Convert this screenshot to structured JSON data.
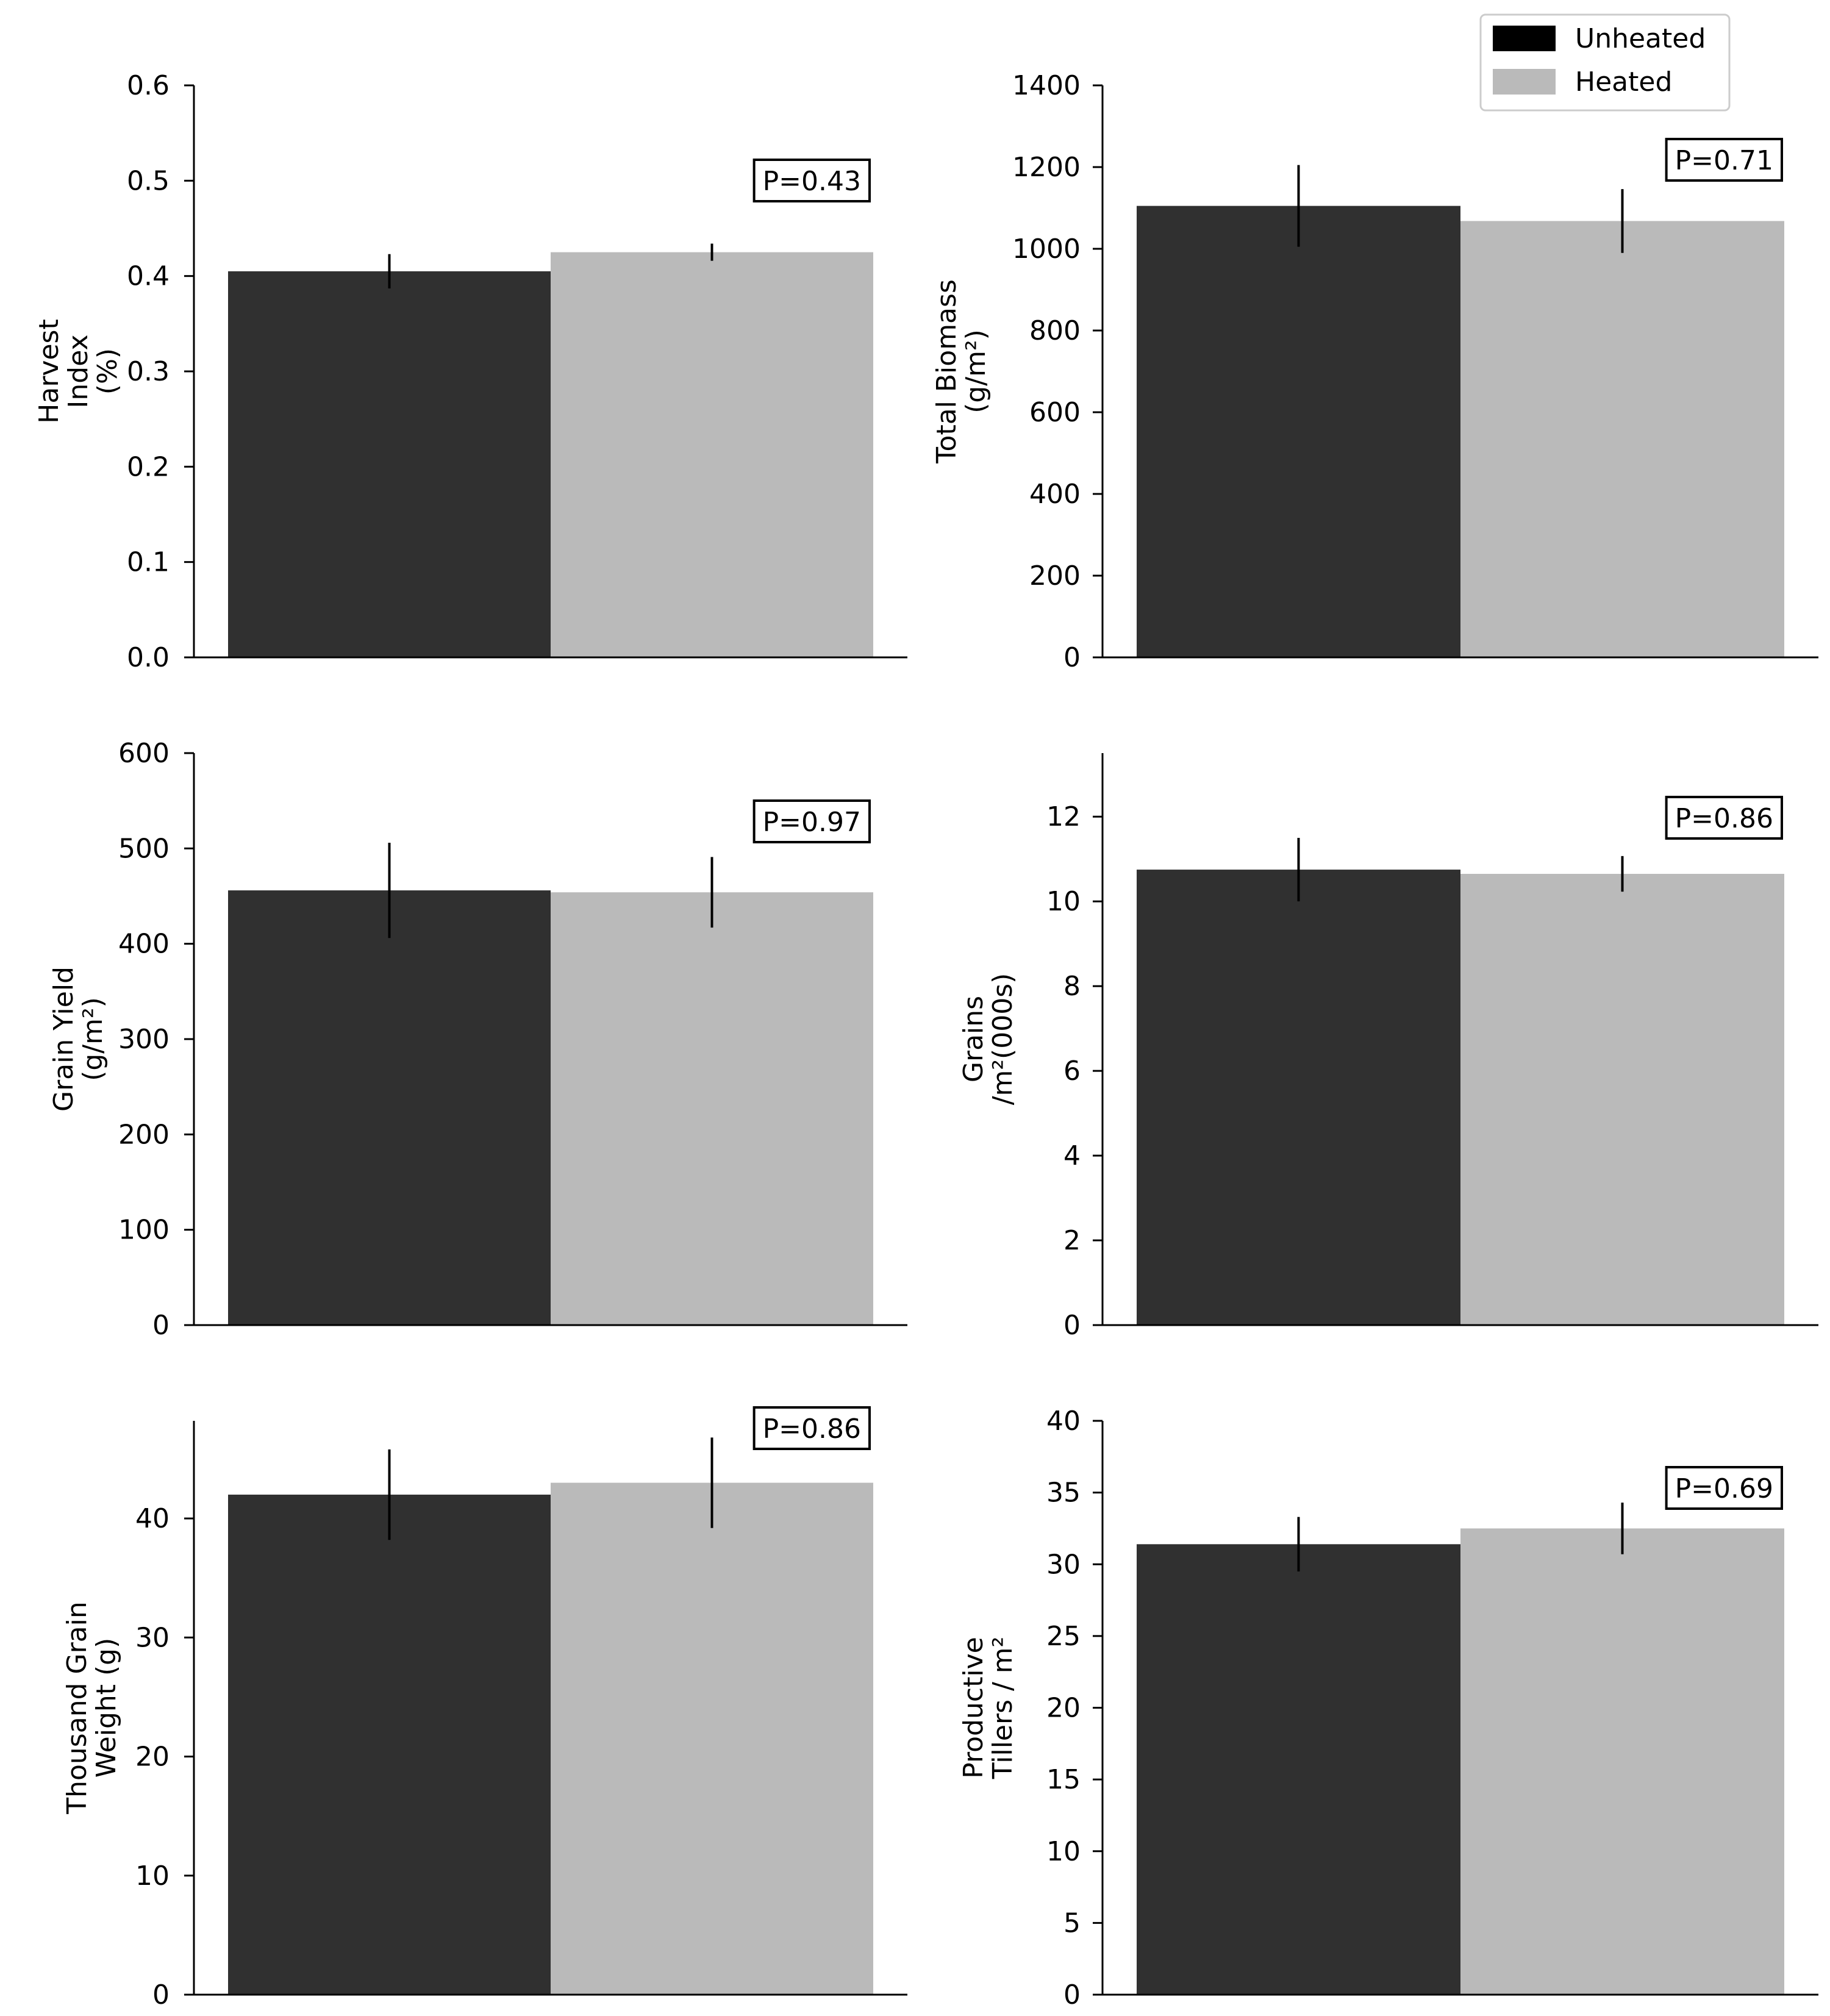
{
  "legend": {
    "items": [
      {
        "label": "Unheated",
        "color": "#303030"
      },
      {
        "label": "Heated",
        "color": "#bababa"
      }
    ]
  },
  "chart_data": [
    {
      "type": "bar",
      "categories": [
        "Unheated",
        "Heated"
      ],
      "values": [
        0.405,
        0.425
      ],
      "errors": [
        0.018,
        0.009
      ],
      "ylabel_lines": [
        "Harvest",
        "Index",
        "(%)"
      ],
      "ylim": [
        0,
        0.6
      ],
      "yticks": [
        0.0,
        0.1,
        0.2,
        0.3,
        0.4,
        0.5,
        0.6
      ],
      "ytick_labels": [
        "0.0",
        "0.1",
        "0.2",
        "0.3",
        "0.4",
        "0.5",
        "0.6"
      ],
      "annotation": "P=0.43",
      "colors": [
        "#303030",
        "#bababa"
      ]
    },
    {
      "type": "bar",
      "categories": [
        "Unheated",
        "Heated"
      ],
      "values": [
        1105,
        1068
      ],
      "errors": [
        100,
        78
      ],
      "ylabel_lines": [
        "Total Biomass",
        "(g/m²)"
      ],
      "ylim": [
        0,
        1400
      ],
      "yticks": [
        0,
        200,
        400,
        600,
        800,
        1000,
        1200,
        1400
      ],
      "ytick_labels": [
        "0",
        "200",
        "400",
        "600",
        "800",
        "1000",
        "1200",
        "1400"
      ],
      "annotation": "P=0.71",
      "colors": [
        "#303030",
        "#bababa"
      ]
    },
    {
      "type": "bar",
      "categories": [
        "Unheated",
        "Heated"
      ],
      "values": [
        456,
        454
      ],
      "errors": [
        50,
        37
      ],
      "ylabel_lines": [
        "Grain Yield",
        "(g/m²)"
      ],
      "ylim": [
        0,
        600
      ],
      "yticks": [
        0,
        100,
        200,
        300,
        400,
        500,
        600
      ],
      "ytick_labels": [
        "0",
        "100",
        "200",
        "300",
        "400",
        "500",
        "600"
      ],
      "annotation": "P=0.97",
      "colors": [
        "#303030",
        "#bababa"
      ]
    },
    {
      "type": "bar",
      "categories": [
        "Unheated",
        "Heated"
      ],
      "values": [
        10.75,
        10.65
      ],
      "errors": [
        0.75,
        0.42
      ],
      "ylabel_lines": [
        "Grains",
        "/m²(000s)"
      ],
      "ylim": [
        0,
        13.5
      ],
      "yticks": [
        0,
        2,
        4,
        6,
        8,
        10,
        12
      ],
      "ytick_labels": [
        "0",
        "2",
        "4",
        "6",
        "8",
        "10",
        "12"
      ],
      "annotation": "P=0.86",
      "colors": [
        "#303030",
        "#bababa"
      ]
    },
    {
      "type": "bar",
      "categories": [
        "Unheated",
        "Heated"
      ],
      "values": [
        42.0,
        43.0
      ],
      "errors": [
        3.8,
        3.8
      ],
      "ylabel_lines": [
        "Thousand Grain",
        "Weight (g)"
      ],
      "ylim": [
        0,
        48.2
      ],
      "yticks": [
        0,
        10,
        20,
        30,
        40
      ],
      "ytick_labels": [
        "0",
        "10",
        "20",
        "30",
        "40"
      ],
      "annotation": "P=0.86",
      "colors": [
        "#303030",
        "#bababa"
      ]
    },
    {
      "type": "bar",
      "categories": [
        "Unheated",
        "Heated"
      ],
      "values": [
        31.4,
        32.5
      ],
      "errors": [
        1.9,
        1.8
      ],
      "ylabel_lines": [
        "Productive",
        "Tillers / m²"
      ],
      "ylim": [
        0,
        40
      ],
      "yticks": [
        0,
        5,
        10,
        15,
        20,
        25,
        30,
        35,
        40
      ],
      "ytick_labels": [
        "0",
        "5",
        "10",
        "15",
        "20",
        "25",
        "30",
        "35",
        "40"
      ],
      "annotation": "P=0.69",
      "colors": [
        "#303030",
        "#bababa"
      ]
    }
  ]
}
